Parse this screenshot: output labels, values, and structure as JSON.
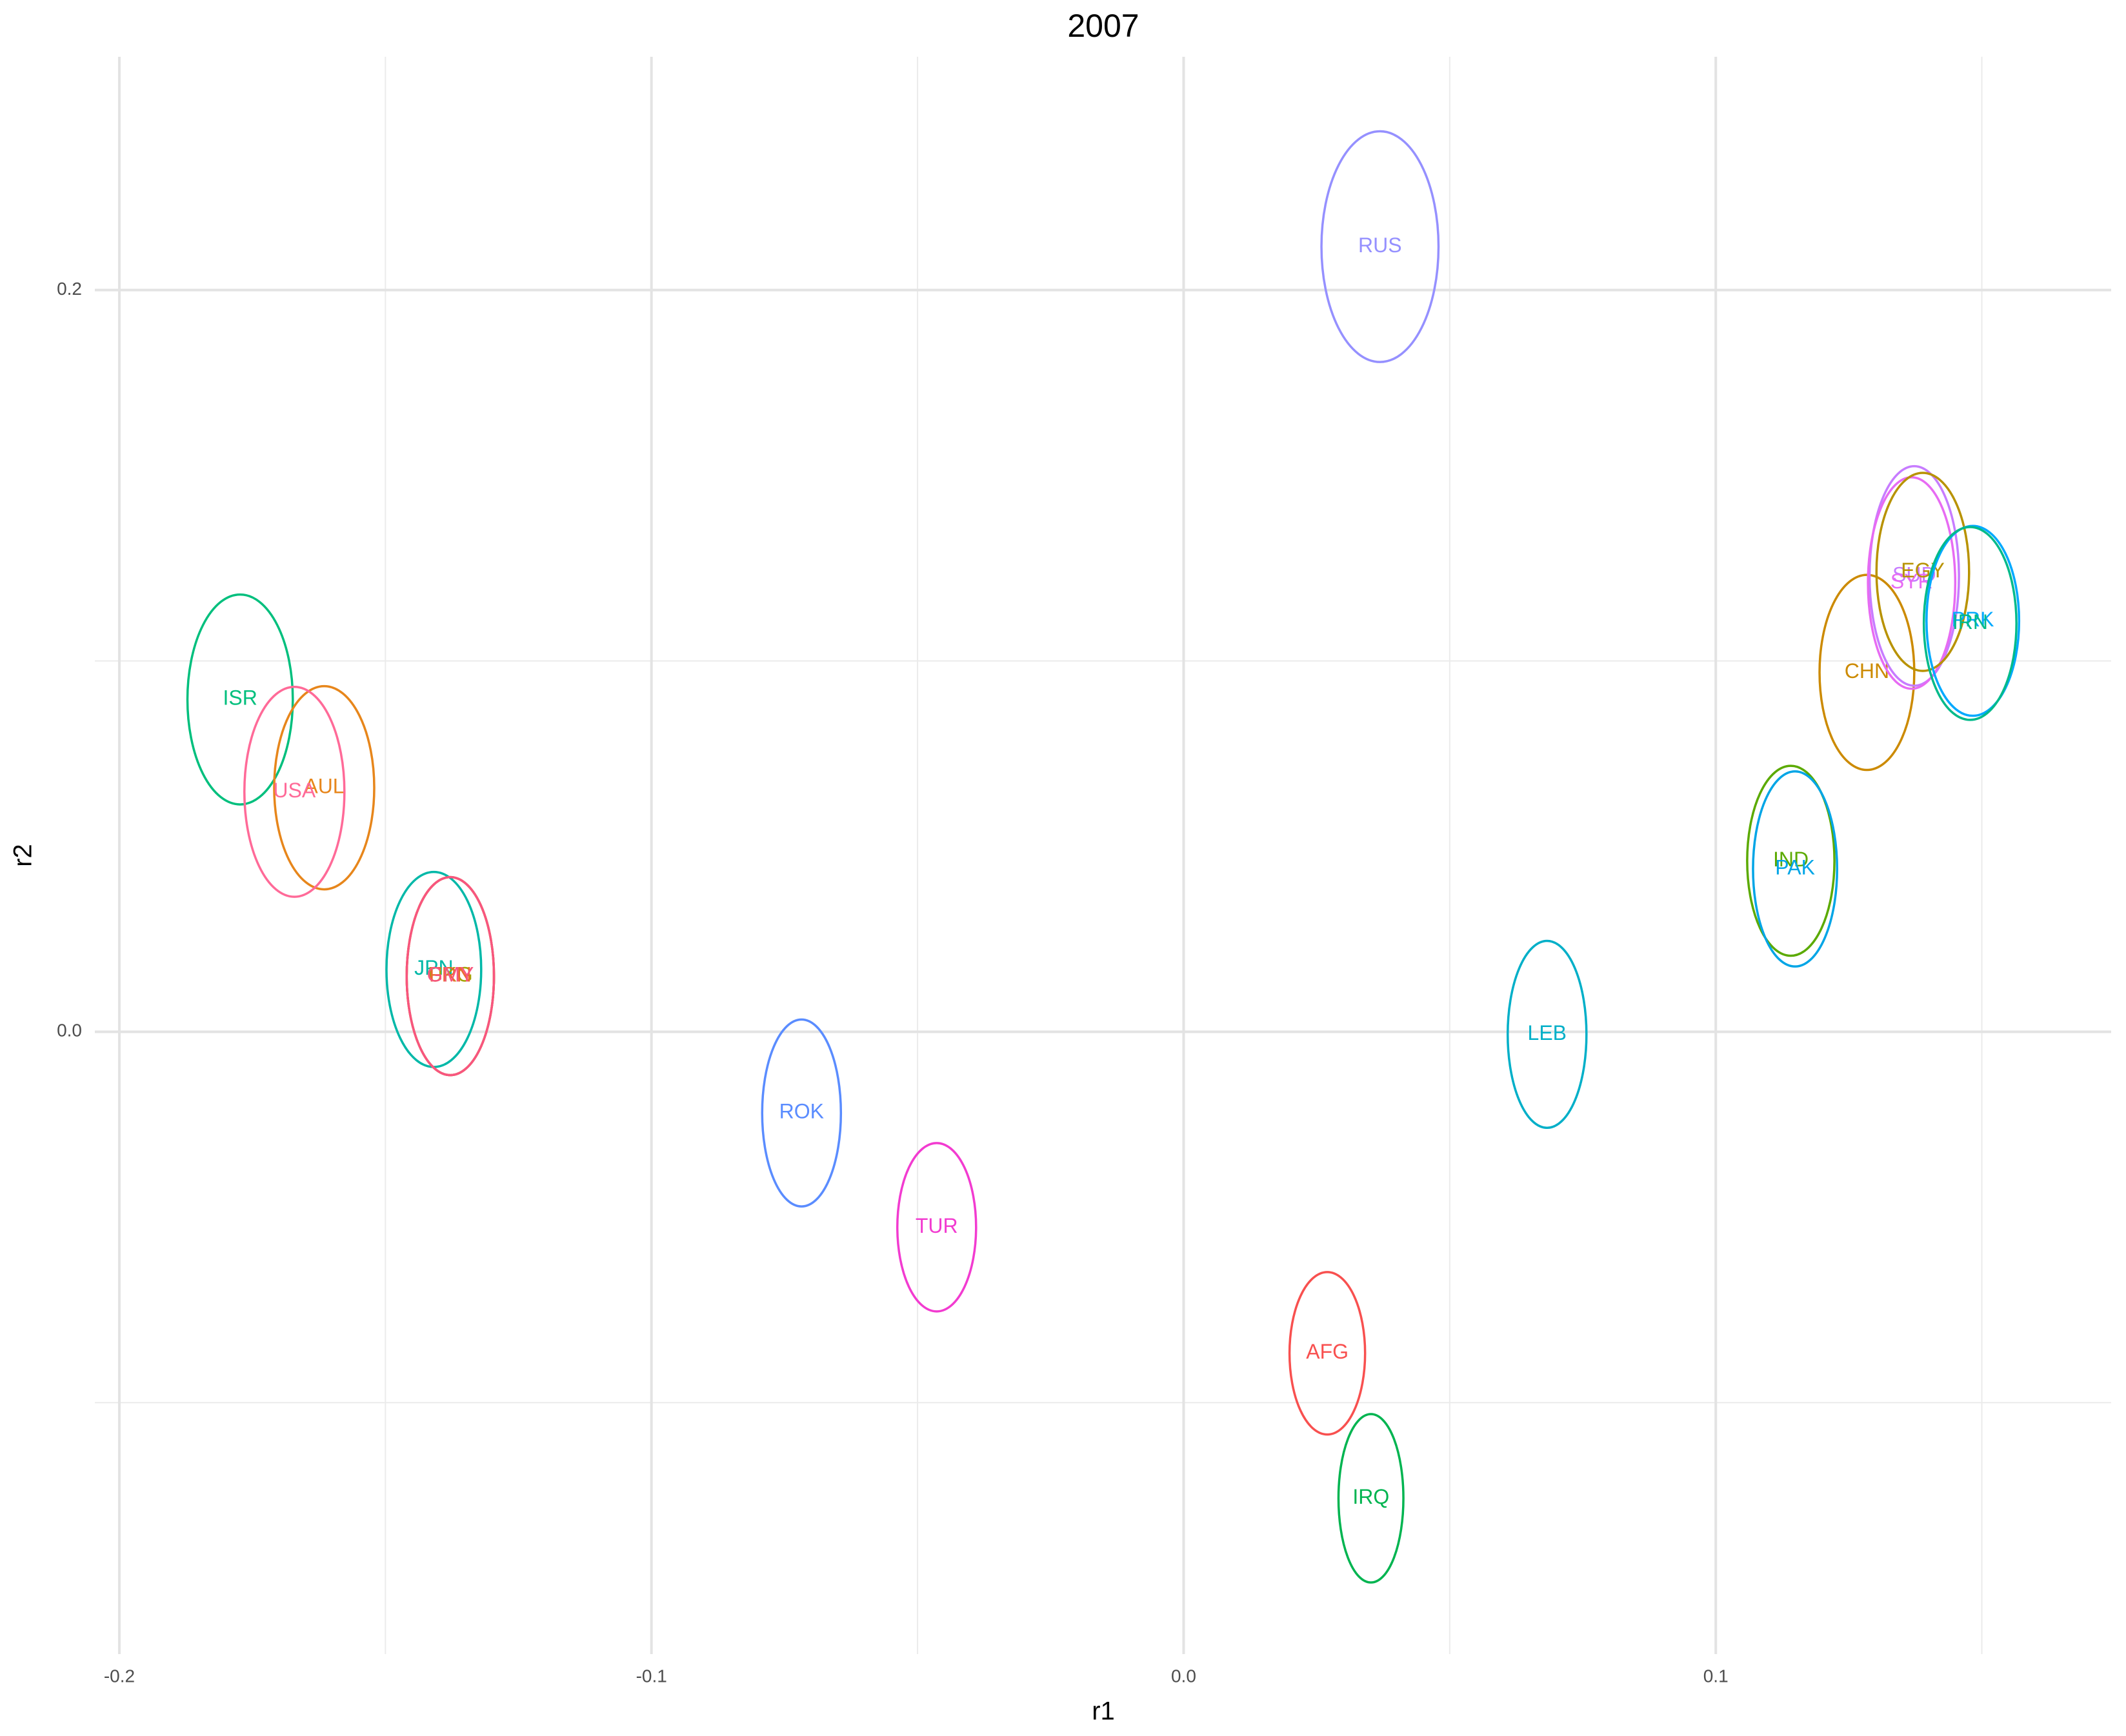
{
  "chart_data": {
    "type": "ellipse",
    "title": "2007",
    "x_label": "r1",
    "y_label": "r2",
    "xlim": [
      -0.2046,
      0.1743
    ],
    "ylim": [
      -0.1678,
      0.2629
    ],
    "xticks": [
      -0.2,
      -0.1,
      {
        "value": 0,
        "label": "0.0"
      },
      0.1
    ],
    "yticks": [
      {
        "value": 0,
        "label": "0.0"
      },
      0.2
    ],
    "x_minor_grid": [
      -0.15,
      -0.05,
      0.05,
      0.15
    ],
    "y_minor_grid": [
      -0.1,
      0.1
    ],
    "grid": true,
    "points": [
      {
        "label": "RUS",
        "x": 0.0369,
        "y": 0.2117,
        "rx": 0.011,
        "ry": 0.0311,
        "color": "#9590FF"
      },
      {
        "label": "ISR",
        "x": -0.1773,
        "y": 0.0896,
        "rx": 0.0099,
        "ry": 0.0283,
        "color": "#00BF7D"
      },
      {
        "label": "AUL",
        "x": -0.1615,
        "y": 0.0658,
        "rx": 0.0094,
        "ry": 0.0274,
        "color": "#E7861B"
      },
      {
        "label": "USA",
        "x": -0.1671,
        "y": 0.0647,
        "rx": 0.0094,
        "ry": 0.0283,
        "color": "#FF6A98"
      },
      {
        "label": "JPN",
        "x": -0.1409,
        "y": 0.0168,
        "rx": 0.0089,
        "ry": 0.0263,
        "color": "#00B8A8"
      },
      {
        "label": "UKG",
        "x": -0.1378,
        "y": 0.015,
        "rx": 0.0082,
        "ry": 0.0267,
        "color": "#A3A500"
      },
      {
        "label": "FRN",
        "x": -0.1378,
        "y": 0.015,
        "rx": 0.0082,
        "ry": 0.0267,
        "color": "#EA6A2E"
      },
      {
        "label": "GMY",
        "x": -0.1378,
        "y": 0.015,
        "rx": 0.0082,
        "ry": 0.0267,
        "color": "#F8557F"
      },
      {
        "label": "ROK",
        "x": -0.0718,
        "y": -0.0219,
        "rx": 0.0074,
        "ry": 0.0252,
        "color": "#5A8CFF"
      },
      {
        "label": "TUR",
        "x": -0.0464,
        "y": -0.0527,
        "rx": 0.0074,
        "ry": 0.0227,
        "color": "#F23BD0"
      },
      {
        "label": "AFG",
        "x": 0.027,
        "y": -0.0867,
        "rx": 0.0071,
        "ry": 0.0219,
        "color": "#F8504F"
      },
      {
        "label": "IRQ",
        "x": 0.0352,
        "y": -0.1258,
        "rx": 0.0061,
        "ry": 0.0227,
        "color": "#00B450"
      },
      {
        "label": "LEB",
        "x": 0.0683,
        "y": -0.0007,
        "rx": 0.0074,
        "ry": 0.0252,
        "color": "#00AFC8"
      },
      {
        "label": "IND",
        "x": 0.1141,
        "y": 0.0461,
        "rx": 0.0082,
        "ry": 0.0256,
        "color": "#5BAA00"
      },
      {
        "label": "PAK",
        "x": 0.1149,
        "y": 0.0439,
        "rx": 0.0079,
        "ry": 0.0263,
        "color": "#00A5E6"
      },
      {
        "label": "CHN",
        "x": 0.1284,
        "y": 0.0969,
        "rx": 0.0089,
        "ry": 0.0263,
        "color": "#CC8A00"
      },
      {
        "label": "SUD",
        "x": 0.1373,
        "y": 0.1229,
        "rx": 0.0084,
        "ry": 0.0296,
        "color": "#C77CFF"
      },
      {
        "label": "SYR",
        "x": 0.1368,
        "y": 0.121,
        "rx": 0.0082,
        "ry": 0.0285,
        "color": "#E76BF3"
      },
      {
        "label": "EGY",
        "x": 0.1389,
        "y": 0.124,
        "rx": 0.0087,
        "ry": 0.0267,
        "color": "#B89200"
      },
      {
        "label": "PRK",
        "x": 0.1483,
        "y": 0.1108,
        "rx": 0.0087,
        "ry": 0.0256,
        "color": "#00A9FF"
      },
      {
        "label": "IRN",
        "x": 0.1478,
        "y": 0.1101,
        "rx": 0.0087,
        "ry": 0.026,
        "color": "#00BA8A"
      }
    ]
  }
}
